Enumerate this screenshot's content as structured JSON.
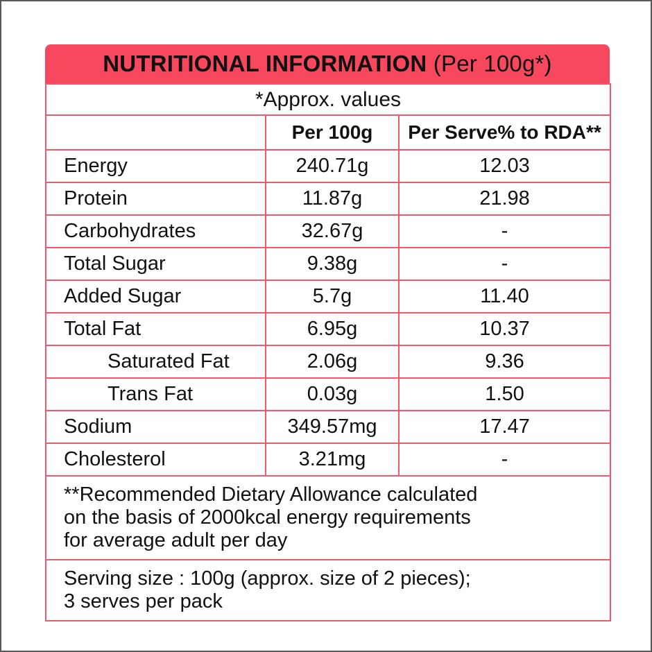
{
  "header": {
    "title_bold": "NUTRITIONAL INFORMATION",
    "title_suffix": " (Per 100g*)"
  },
  "approx_note": "*Approx. values",
  "columns": {
    "nutrient": "",
    "per_100g": "Per 100g",
    "per_serve_rda": "Per Serve% to RDA**"
  },
  "rows": [
    {
      "label": "Energy",
      "per_100g": "240.71g",
      "per_serve_rda": "12.03"
    },
    {
      "label": "Protein",
      "per_100g": "11.87g",
      "per_serve_rda": "21.98"
    },
    {
      "label": "Carbohydrates",
      "per_100g": "32.67g",
      "per_serve_rda": "-"
    },
    {
      "label": "Total Sugar",
      "per_100g": "9.38g",
      "per_serve_rda": "-"
    },
    {
      "label": "Added Sugar",
      "per_100g": "5.7g",
      "per_serve_rda": "11.40"
    },
    {
      "label": "Total Fat",
      "per_100g": "6.95g",
      "per_serve_rda": "10.37"
    },
    {
      "label": "Saturated Fat",
      "per_100g": "2.06g",
      "per_serve_rda": "9.36"
    },
    {
      "label": "Trans Fat",
      "per_100g": "0.03g",
      "per_serve_rda": "1.50"
    },
    {
      "label": "Sodium",
      "per_100g": "349.57mg",
      "per_serve_rda": "17.47"
    },
    {
      "label": "Cholesterol",
      "per_100g": "3.21mg",
      "per_serve_rda": "-"
    }
  ],
  "footnotes": {
    "rda_lines": [
      "**Recommended Dietary Allowance calculated",
      "on the basis of 2000kcal energy requirements",
      "for average adult per day"
    ],
    "serving_lines": [
      "Serving size : 100g (approx. size of 2 pieces);",
      "3 serves per pack"
    ]
  },
  "colors": {
    "header_bg": "#F8485E",
    "table_border": "#F4566A",
    "text": "#111111",
    "outer_frame": "#58585A"
  }
}
